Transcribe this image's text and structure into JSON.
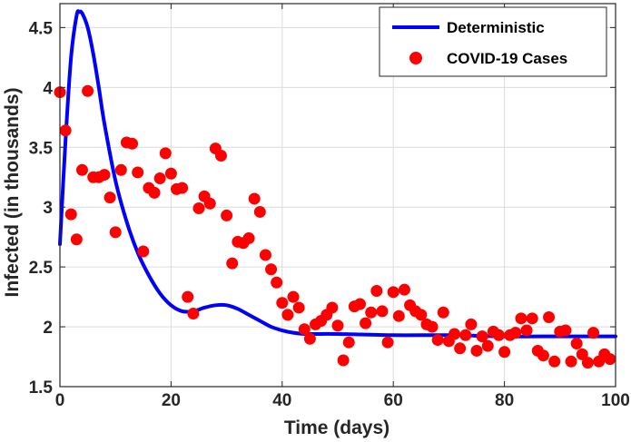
{
  "chart_data": {
    "type": "line",
    "title": "",
    "xlabel": "Time (days)",
    "ylabel": "Infected  (in thousands)",
    "xlim": [
      0,
      100
    ],
    "ylim": [
      1.5,
      4.7
    ],
    "xticks": [
      0,
      20,
      40,
      60,
      80,
      100
    ],
    "xtick_labels": [
      "0",
      "20",
      "40",
      "60",
      "80",
      "100"
    ],
    "yticks": [
      1.5,
      2,
      2.5,
      3,
      3.5,
      4,
      4.5
    ],
    "ytick_labels": [
      "1.5",
      "2",
      "2.5",
      "3",
      "3.5",
      "4",
      "4.5"
    ],
    "grid": true,
    "legend_position": "top-right",
    "series": [
      {
        "name": "Deterministic",
        "kind": "line",
        "color": "#0000ff",
        "x": [
          0,
          1,
          2,
          3,
          3.5,
          4,
          5,
          6,
          7,
          8,
          10,
          12,
          14,
          16,
          18,
          20,
          22,
          24,
          26,
          28,
          30,
          32,
          34,
          36,
          38,
          40,
          42,
          44,
          46,
          50,
          60,
          70,
          80,
          90,
          100
        ],
        "y": [
          2.69,
          3.55,
          4.25,
          4.6,
          4.63,
          4.62,
          4.5,
          4.28,
          4.0,
          3.7,
          3.22,
          2.88,
          2.62,
          2.43,
          2.28,
          2.18,
          2.13,
          2.13,
          2.16,
          2.18,
          2.18,
          2.15,
          2.1,
          2.05,
          2.0,
          1.97,
          1.95,
          1.94,
          1.94,
          1.94,
          1.93,
          1.93,
          1.92,
          1.92,
          1.92
        ]
      },
      {
        "name": "COVID-19 Cases",
        "kind": "scatter",
        "color": "#ff0000",
        "x": [
          0,
          1,
          2,
          3,
          4,
          5,
          6,
          7,
          8,
          9,
          10,
          11,
          12,
          13,
          14,
          15,
          16,
          17,
          18,
          19,
          20,
          21,
          22,
          23,
          24,
          25,
          26,
          27,
          28,
          29,
          30,
          31,
          32,
          33,
          34,
          35,
          36,
          37,
          38,
          39,
          40,
          41,
          42,
          43,
          44,
          45,
          46,
          47,
          48,
          49,
          50,
          51,
          52,
          53,
          54,
          55,
          56,
          57,
          58,
          59,
          60,
          61,
          62,
          63,
          64,
          65,
          66,
          67,
          68,
          69,
          70,
          71,
          72,
          73,
          74,
          75,
          76,
          77,
          78,
          79,
          80,
          81,
          82,
          83,
          84,
          85,
          86,
          87,
          88,
          89,
          90,
          91,
          92,
          93,
          94,
          95,
          96,
          97,
          98,
          99
        ],
        "y": [
          3.96,
          3.64,
          2.94,
          2.73,
          3.31,
          3.97,
          3.25,
          3.25,
          3.27,
          3.08,
          2.79,
          3.31,
          3.54,
          3.53,
          3.29,
          2.63,
          3.16,
          3.12,
          3.24,
          3.45,
          3.28,
          3.15,
          3.16,
          2.25,
          2.11,
          2.99,
          3.09,
          3.03,
          3.49,
          3.43,
          2.93,
          2.53,
          2.71,
          2.7,
          2.74,
          3.07,
          2.96,
          2.6,
          2.48,
          2.37,
          2.2,
          2.1,
          2.25,
          2.16,
          1.98,
          1.9,
          2.02,
          2.05,
          2.1,
          2.16,
          2.01,
          1.72,
          1.87,
          2.17,
          2.19,
          2.03,
          2.12,
          2.3,
          2.13,
          1.87,
          2.29,
          2.09,
          2.31,
          2.18,
          2.13,
          2.1,
          2.02,
          2.0,
          1.89,
          2.12,
          1.88,
          1.94,
          1.82,
          1.93,
          2.02,
          1.8,
          1.92,
          1.84,
          1.96,
          1.93,
          1.79,
          1.93,
          1.95,
          2.07,
          1.97,
          2.07,
          1.8,
          1.76,
          2.08,
          1.71,
          1.96,
          1.97,
          1.71,
          1.86,
          1.77,
          1.7,
          1.95,
          1.71,
          1.77,
          1.73
        ]
      }
    ]
  }
}
